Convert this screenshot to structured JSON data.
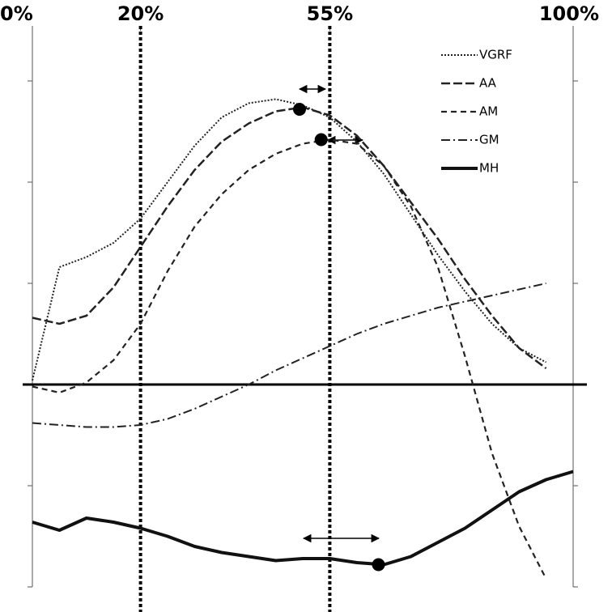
{
  "chart_data": {
    "type": "line",
    "x": [
      0,
      5,
      10,
      15,
      20,
      25,
      30,
      35,
      40,
      45,
      50,
      55,
      60,
      65,
      70,
      75,
      80,
      85,
      90,
      95,
      100
    ],
    "xlim": [
      0,
      100
    ],
    "xticks": [
      {
        "value": 0,
        "label": "0%"
      },
      {
        "value": 20,
        "label": "20%"
      },
      {
        "value": 55,
        "label": "55%"
      },
      {
        "value": 100,
        "label": "100%"
      }
    ],
    "reference_lines": [
      20,
      55
    ],
    "ylim": [
      -2,
      3.5
    ],
    "yticks": [
      -2,
      -1,
      0,
      1,
      2,
      3
    ],
    "legend": "upper right",
    "series": [
      {
        "name": "VGRF",
        "color": "#222222",
        "style": "dotted",
        "values": [
          0.04,
          1.16,
          1.26,
          1.4,
          1.64,
          2.0,
          2.36,
          2.64,
          2.78,
          2.82,
          2.76,
          2.64,
          2.4,
          2.08,
          1.68,
          1.28,
          0.92,
          0.6,
          0.36,
          0.22,
          null
        ]
      },
      {
        "name": "AA",
        "color": "#222222",
        "style": "long-dash",
        "values": [
          0.66,
          0.6,
          0.68,
          0.96,
          1.36,
          1.76,
          2.12,
          2.4,
          2.58,
          2.7,
          2.74,
          2.66,
          2.46,
          2.16,
          1.8,
          1.44,
          1.04,
          0.68,
          0.36,
          0.16,
          null
        ]
      },
      {
        "name": "AM",
        "color": "#222222",
        "style": "dash",
        "values": [
          -0.02,
          -0.08,
          0.02,
          0.24,
          0.6,
          1.12,
          1.56,
          1.88,
          2.12,
          2.28,
          2.38,
          2.42,
          2.38,
          2.16,
          1.76,
          1.16,
          0.28,
          -0.68,
          -1.4,
          -1.92,
          null
        ]
      },
      {
        "name": "GM",
        "color": "#222222",
        "style": "dash-dot",
        "values": [
          -0.38,
          -0.4,
          -0.42,
          -0.42,
          -0.4,
          -0.34,
          -0.24,
          -0.12,
          0,
          0.14,
          0.26,
          0.38,
          0.5,
          0.6,
          0.68,
          0.76,
          0.82,
          0.88,
          0.94,
          1.0,
          null
        ]
      },
      {
        "name": "MH",
        "color": "#111111",
        "style": "solid",
        "values": [
          -1.36,
          -1.44,
          -1.32,
          -1.36,
          -1.42,
          -1.5,
          -1.6,
          -1.66,
          -1.7,
          -1.74,
          -1.72,
          -1.72,
          -1.76,
          -1.78,
          -1.7,
          -1.56,
          -1.42,
          -1.24,
          -1.06,
          -0.94,
          -0.86
        ]
      }
    ],
    "markers": [
      {
        "x": 49.4,
        "y": 2.72
      },
      {
        "x": 53.4,
        "y": 2.42
      },
      {
        "x": 64,
        "y": -1.78
      }
    ]
  }
}
